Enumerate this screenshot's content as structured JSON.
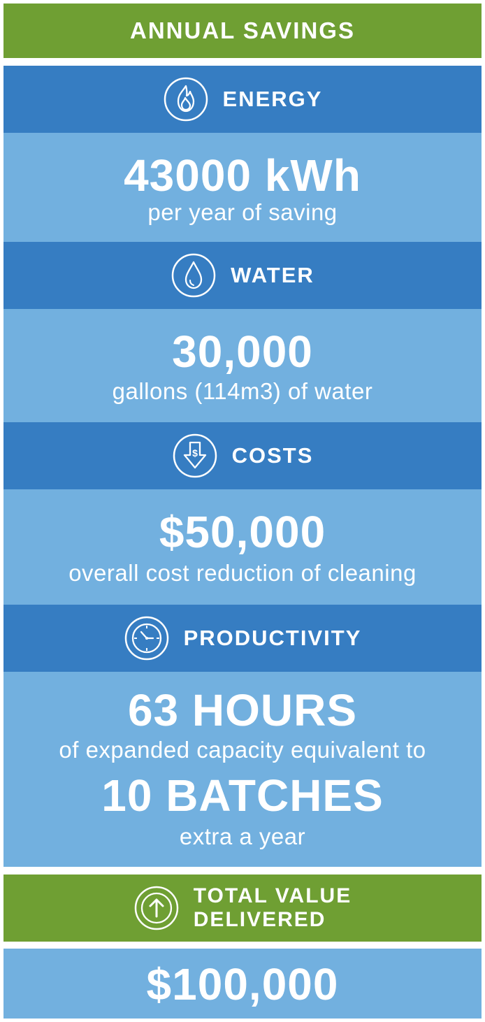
{
  "header": {
    "title": "ANNUAL SAVINGS"
  },
  "sections": [
    {
      "icon": "flame-icon",
      "title": "ENERGY",
      "value": "43000 kWh",
      "caption": "per year of saving"
    },
    {
      "icon": "water-drop-icon",
      "title": "WATER",
      "value": "30,000",
      "caption": "gallons (114m3) of water"
    },
    {
      "icon": "dollar-down-arrow-icon",
      "title": "COSTS",
      "value": "$50,000",
      "caption": "overall cost reduction of cleaning"
    },
    {
      "icon": "clock-icon",
      "title": "PRODUCTIVITY",
      "value": "63 HOURS",
      "caption": "of expanded capacity equivalent to",
      "value2": "10 BATCHES",
      "caption2": "extra a year"
    }
  ],
  "total": {
    "icon": "up-arrow-icon",
    "title_line1": "TOTAL VALUE",
    "title_line2": "DELIVERED",
    "value": "$100,000"
  },
  "colors": {
    "green": "#6f9f33",
    "dark_blue": "#367dc2",
    "light_blue": "#72b0df",
    "text": "#ffffff"
  }
}
